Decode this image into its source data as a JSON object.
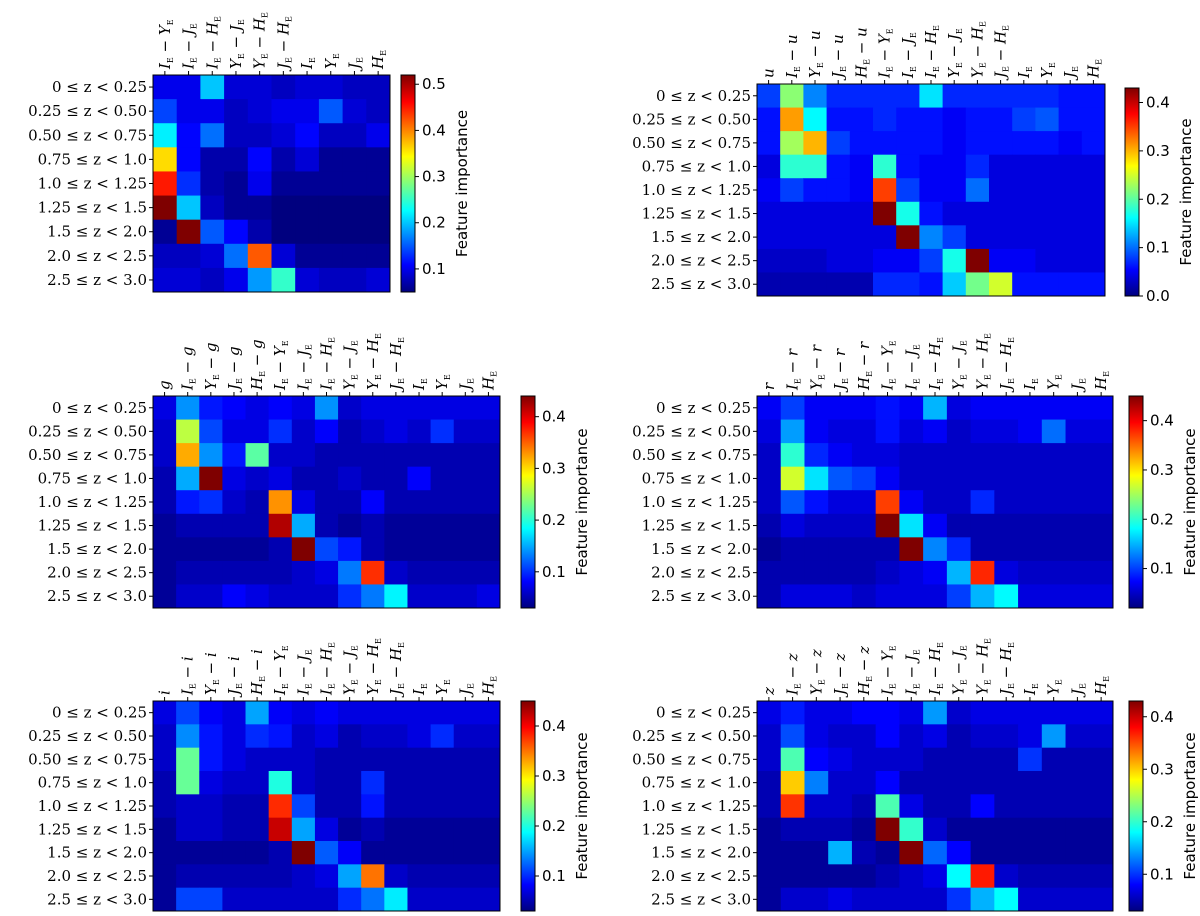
{
  "colormap": [
    "#00007f",
    "#0000ff",
    "#007fff",
    "#00ffff",
    "#7fff7f",
    "#ffff00",
    "#ff7f00",
    "#ff0000",
    "#7f0000"
  ],
  "chart_data": [
    {
      "type": "heatmap",
      "panel": "top-left",
      "colorbar_label": "Feature importance",
      "vmin": 0.05,
      "vmax": 0.52,
      "colorbar_ticks": [
        0.1,
        0.2,
        0.3,
        0.4,
        0.5
      ],
      "columns": [
        "I_E − Y_E",
        "I_E − J_E",
        "I_E − H_E",
        "Y_E − J_E",
        "Y_E − H_E",
        "J_E − H_E",
        "I_E",
        "Y_E",
        "J_E",
        "H_E"
      ],
      "rows": [
        "0 ≤ z < 0.25",
        "0.25 ≤ z < 0.50",
        "0.50 ≤ z < 0.75",
        "0.75 ≤ z < 1.0",
        "1.0 ≤ z < 1.25",
        "1.25 ≤ z < 1.5",
        "1.5 ≤ z < 2.0",
        "2.0 ≤ z < 2.5",
        "2.5 ≤ z < 3.0"
      ],
      "values": [
        [
          0.1,
          0.1,
          0.2,
          0.09,
          0.09,
          0.08,
          0.09,
          0.09,
          0.08,
          0.08
        ],
        [
          0.14,
          0.1,
          0.1,
          0.08,
          0.09,
          0.1,
          0.1,
          0.15,
          0.09,
          0.08
        ],
        [
          0.22,
          0.11,
          0.16,
          0.08,
          0.08,
          0.09,
          0.11,
          0.08,
          0.08,
          0.1
        ],
        [
          0.36,
          0.11,
          0.07,
          0.07,
          0.11,
          0.07,
          0.09,
          0.06,
          0.06,
          0.06
        ],
        [
          0.45,
          0.13,
          0.07,
          0.06,
          0.1,
          0.06,
          0.06,
          0.06,
          0.06,
          0.06
        ],
        [
          0.52,
          0.2,
          0.08,
          0.06,
          0.06,
          0.05,
          0.05,
          0.05,
          0.05,
          0.05
        ],
        [
          0.06,
          0.52,
          0.15,
          0.11,
          0.07,
          0.05,
          0.05,
          0.05,
          0.05,
          0.05
        ],
        [
          0.08,
          0.08,
          0.09,
          0.16,
          0.42,
          0.09,
          0.06,
          0.06,
          0.06,
          0.06
        ],
        [
          0.09,
          0.09,
          0.08,
          0.1,
          0.18,
          0.25,
          0.09,
          0.08,
          0.08,
          0.09
        ]
      ]
    },
    {
      "type": "heatmap",
      "panel": "top-right",
      "colorbar_label": "Feature importance",
      "vmin": 0.0,
      "vmax": 0.43,
      "colorbar_ticks": [
        0.0,
        0.1,
        0.2,
        0.3,
        0.4
      ],
      "columns": [
        "u",
        "I_E − u",
        "Y_E − u",
        "J_E − u",
        "H_E − u",
        "I_E − Y_E",
        "I_E − J_E",
        "I_E − H_E",
        "Y_E − J_E",
        "Y_E − H_E",
        "J_E − H_E",
        "I_E",
        "Y_E",
        "J_E",
        "H_E"
      ],
      "rows": [
        "0 ≤ z < 0.25",
        "0.25 ≤ z < 0.50",
        "0.50 ≤ z < 0.75",
        "0.75 ≤ z < 1.0",
        "1.0 ≤ z < 1.25",
        "1.25 ≤ z < 1.5",
        "1.5 ≤ z < 2.0",
        "2.0 ≤ z < 2.5",
        "2.5 ≤ z < 3.0"
      ],
      "values": [
        [
          0.08,
          0.22,
          0.11,
          0.07,
          0.07,
          0.07,
          0.07,
          0.15,
          0.07,
          0.07,
          0.07,
          0.07,
          0.07,
          0.06,
          0.06
        ],
        [
          0.06,
          0.31,
          0.16,
          0.06,
          0.06,
          0.07,
          0.06,
          0.06,
          0.05,
          0.06,
          0.06,
          0.08,
          0.09,
          0.06,
          0.06
        ],
        [
          0.06,
          0.23,
          0.3,
          0.08,
          0.06,
          0.06,
          0.06,
          0.06,
          0.05,
          0.06,
          0.06,
          0.06,
          0.06,
          0.05,
          0.06
        ],
        [
          0.04,
          0.18,
          0.18,
          0.06,
          0.05,
          0.18,
          0.06,
          0.05,
          0.05,
          0.07,
          0.04,
          0.04,
          0.04,
          0.04,
          0.04
        ],
        [
          0.05,
          0.08,
          0.06,
          0.06,
          0.05,
          0.35,
          0.08,
          0.05,
          0.05,
          0.1,
          0.04,
          0.04,
          0.04,
          0.04,
          0.04
        ],
        [
          0.04,
          0.04,
          0.04,
          0.04,
          0.04,
          0.43,
          0.17,
          0.06,
          0.04,
          0.04,
          0.04,
          0.04,
          0.04,
          0.04,
          0.04
        ],
        [
          0.04,
          0.04,
          0.04,
          0.04,
          0.04,
          0.04,
          0.43,
          0.11,
          0.08,
          0.04,
          0.04,
          0.04,
          0.04,
          0.04,
          0.04
        ],
        [
          0.03,
          0.03,
          0.03,
          0.04,
          0.04,
          0.05,
          0.05,
          0.08,
          0.17,
          0.43,
          0.05,
          0.05,
          0.04,
          0.04,
          0.04
        ],
        [
          0.02,
          0.02,
          0.02,
          0.02,
          0.02,
          0.07,
          0.07,
          0.06,
          0.14,
          0.21,
          0.25,
          0.06,
          0.06,
          0.06,
          0.06
        ]
      ]
    },
    {
      "type": "heatmap",
      "panel": "middle-left",
      "colorbar_label": "Feature importance",
      "vmin": 0.03,
      "vmax": 0.44,
      "colorbar_ticks": [
        0.1,
        0.2,
        0.3,
        0.4
      ],
      "columns": [
        "g",
        "I_E − g",
        "Y_E − g",
        "J_E − g",
        "H_E − g",
        "I_E − Y_E",
        "I_E − J_E",
        "I_E − H_E",
        "Y_E − J_E",
        "Y_E − H_E",
        "J_E − H_E",
        "I_E",
        "Y_E",
        "J_E",
        "H_E"
      ],
      "rows": [
        "0 ≤ z < 0.25",
        "0.25 ≤ z < 0.50",
        "0.50 ≤ z < 0.75",
        "0.75 ≤ z < 1.0",
        "1.0 ≤ z < 1.25",
        "1.25 ≤ z < 1.5",
        "1.5 ≤ z < 2.0",
        "2.0 ≤ z < 2.5",
        "2.5 ≤ z < 3.0"
      ],
      "values": [
        [
          0.07,
          0.14,
          0.09,
          0.08,
          0.07,
          0.08,
          0.07,
          0.14,
          0.06,
          0.07,
          0.07,
          0.07,
          0.07,
          0.07,
          0.07
        ],
        [
          0.06,
          0.26,
          0.11,
          0.07,
          0.07,
          0.1,
          0.06,
          0.08,
          0.05,
          0.06,
          0.07,
          0.06,
          0.1,
          0.06,
          0.06
        ],
        [
          0.06,
          0.32,
          0.14,
          0.09,
          0.22,
          0.06,
          0.06,
          0.05,
          0.05,
          0.05,
          0.05,
          0.05,
          0.05,
          0.05,
          0.05
        ],
        [
          0.05,
          0.15,
          0.44,
          0.07,
          0.06,
          0.07,
          0.05,
          0.05,
          0.06,
          0.05,
          0.05,
          0.08,
          0.05,
          0.05,
          0.05
        ],
        [
          0.05,
          0.09,
          0.1,
          0.06,
          0.05,
          0.33,
          0.07,
          0.05,
          0.05,
          0.08,
          0.05,
          0.05,
          0.05,
          0.05,
          0.05
        ],
        [
          0.04,
          0.05,
          0.05,
          0.05,
          0.05,
          0.42,
          0.15,
          0.05,
          0.04,
          0.05,
          0.04,
          0.04,
          0.04,
          0.04,
          0.04
        ],
        [
          0.04,
          0.04,
          0.04,
          0.04,
          0.04,
          0.05,
          0.44,
          0.11,
          0.09,
          0.05,
          0.04,
          0.04,
          0.04,
          0.04,
          0.04
        ],
        [
          0.04,
          0.05,
          0.05,
          0.05,
          0.05,
          0.05,
          0.06,
          0.07,
          0.13,
          0.37,
          0.06,
          0.05,
          0.05,
          0.05,
          0.05
        ],
        [
          0.04,
          0.06,
          0.06,
          0.08,
          0.07,
          0.06,
          0.06,
          0.06,
          0.1,
          0.13,
          0.18,
          0.06,
          0.06,
          0.06,
          0.07
        ]
      ]
    },
    {
      "type": "heatmap",
      "panel": "middle-right",
      "colorbar_label": "Feature importance",
      "vmin": 0.02,
      "vmax": 0.45,
      "colorbar_ticks": [
        0.1,
        0.2,
        0.3,
        0.4
      ],
      "columns": [
        "r",
        "I_E − r",
        "Y_E − r",
        "J_E − r",
        "H_E − r",
        "I_E − Y_E",
        "I_E − J_E",
        "I_E − H_E",
        "Y_E − J_E",
        "Y_E − H_E",
        "J_E − H_E",
        "I_E",
        "Y_E",
        "J_E",
        "H_E"
      ],
      "rows": [
        "0 ≤ z < 0.25",
        "0.25 ≤ z < 0.50",
        "0.50 ≤ z < 0.75",
        "0.75 ≤ z < 1.0",
        "1.0 ≤ z < 1.25",
        "1.25 ≤ z < 1.5",
        "1.5 ≤ z < 2.0",
        "2.0 ≤ z < 2.5",
        "2.5 ≤ z < 3.0"
      ],
      "values": [
        [
          0.07,
          0.1,
          0.07,
          0.07,
          0.07,
          0.08,
          0.07,
          0.15,
          0.06,
          0.07,
          0.07,
          0.07,
          0.07,
          0.07,
          0.07
        ],
        [
          0.06,
          0.14,
          0.07,
          0.06,
          0.06,
          0.08,
          0.06,
          0.07,
          0.05,
          0.06,
          0.06,
          0.07,
          0.12,
          0.06,
          0.06
        ],
        [
          0.05,
          0.2,
          0.09,
          0.07,
          0.06,
          0.06,
          0.05,
          0.05,
          0.05,
          0.05,
          0.05,
          0.05,
          0.05,
          0.05,
          0.05
        ],
        [
          0.05,
          0.27,
          0.17,
          0.11,
          0.1,
          0.07,
          0.05,
          0.05,
          0.05,
          0.05,
          0.05,
          0.05,
          0.05,
          0.05,
          0.05
        ],
        [
          0.05,
          0.11,
          0.08,
          0.06,
          0.06,
          0.37,
          0.07,
          0.05,
          0.05,
          0.09,
          0.05,
          0.05,
          0.05,
          0.05,
          0.05
        ],
        [
          0.04,
          0.06,
          0.05,
          0.05,
          0.05,
          0.45,
          0.17,
          0.07,
          0.04,
          0.04,
          0.04,
          0.04,
          0.04,
          0.04,
          0.04
        ],
        [
          0.03,
          0.04,
          0.04,
          0.04,
          0.04,
          0.04,
          0.45,
          0.13,
          0.09,
          0.04,
          0.04,
          0.04,
          0.04,
          0.04,
          0.04
        ],
        [
          0.04,
          0.04,
          0.04,
          0.04,
          0.04,
          0.05,
          0.06,
          0.07,
          0.15,
          0.38,
          0.06,
          0.05,
          0.05,
          0.05,
          0.05
        ],
        [
          0.04,
          0.06,
          0.06,
          0.06,
          0.05,
          0.06,
          0.06,
          0.06,
          0.1,
          0.15,
          0.18,
          0.06,
          0.06,
          0.06,
          0.06
        ]
      ]
    },
    {
      "type": "heatmap",
      "panel": "bottom-left",
      "colorbar_label": "Feature importance",
      "vmin": 0.03,
      "vmax": 0.45,
      "colorbar_ticks": [
        0.1,
        0.2,
        0.3,
        0.4
      ],
      "columns": [
        "i",
        "I_E − i",
        "Y_E − i",
        "J_E − i",
        "H_E − i",
        "I_E − Y_E",
        "I_E − J_E",
        "I_E − H_E",
        "Y_E − J_E",
        "Y_E − H_E",
        "J_E − H_E",
        "I_E",
        "Y_E",
        "J_E",
        "H_E"
      ],
      "rows": [
        "0 ≤ z < 0.25",
        "0.25 ≤ z < 0.50",
        "0.50 ≤ z < 0.75",
        "0.75 ≤ z < 1.0",
        "1.0 ≤ z < 1.25",
        "1.25 ≤ z < 1.5",
        "1.5 ≤ z < 2.0",
        "2.0 ≤ z < 2.5",
        "2.5 ≤ z < 3.0"
      ],
      "values": [
        [
          0.07,
          0.11,
          0.08,
          0.07,
          0.15,
          0.08,
          0.07,
          0.08,
          0.07,
          0.07,
          0.07,
          0.07,
          0.07,
          0.07,
          0.07
        ],
        [
          0.06,
          0.14,
          0.09,
          0.07,
          0.1,
          0.09,
          0.06,
          0.07,
          0.05,
          0.06,
          0.06,
          0.07,
          0.1,
          0.06,
          0.06
        ],
        [
          0.06,
          0.23,
          0.09,
          0.07,
          0.06,
          0.06,
          0.06,
          0.05,
          0.05,
          0.05,
          0.05,
          0.05,
          0.05,
          0.05,
          0.05
        ],
        [
          0.05,
          0.23,
          0.07,
          0.06,
          0.06,
          0.2,
          0.06,
          0.05,
          0.05,
          0.1,
          0.05,
          0.05,
          0.05,
          0.05,
          0.05
        ],
        [
          0.05,
          0.06,
          0.06,
          0.05,
          0.05,
          0.38,
          0.11,
          0.05,
          0.05,
          0.09,
          0.05,
          0.05,
          0.05,
          0.05,
          0.05
        ],
        [
          0.04,
          0.06,
          0.06,
          0.05,
          0.05,
          0.42,
          0.15,
          0.07,
          0.04,
          0.05,
          0.04,
          0.04,
          0.04,
          0.04,
          0.04
        ],
        [
          0.04,
          0.04,
          0.04,
          0.04,
          0.04,
          0.05,
          0.45,
          0.12,
          0.08,
          0.04,
          0.04,
          0.04,
          0.04,
          0.04,
          0.04
        ],
        [
          0.04,
          0.05,
          0.05,
          0.05,
          0.05,
          0.05,
          0.06,
          0.07,
          0.15,
          0.35,
          0.06,
          0.05,
          0.05,
          0.05,
          0.05
        ],
        [
          0.04,
          0.11,
          0.11,
          0.06,
          0.06,
          0.06,
          0.06,
          0.06,
          0.1,
          0.13,
          0.18,
          0.06,
          0.06,
          0.06,
          0.06
        ]
      ]
    },
    {
      "type": "heatmap",
      "panel": "bottom-right",
      "colorbar_label": "Feature importance",
      "vmin": 0.03,
      "vmax": 0.43,
      "colorbar_ticks": [
        0.1,
        0.2,
        0.3,
        0.4
      ],
      "columns": [
        "z",
        "I_E − z",
        "Y_E − z",
        "J_E − z",
        "H_E − z",
        "I_E − Y_E",
        "I_E − J_E",
        "I_E − H_E",
        "Y_E − J_E",
        "Y_E − H_E",
        "J_E − H_E",
        "I_E",
        "Y_E",
        "J_E",
        "H_E"
      ],
      "rows": [
        "0 ≤ z < 0.25",
        "0.25 ≤ z < 0.50",
        "0.50 ≤ z < 0.75",
        "0.75 ≤ z < 1.0",
        "1.0 ≤ z < 1.25",
        "1.25 ≤ z < 1.5",
        "1.5 ≤ z < 2.0",
        "2.0 ≤ z < 2.5",
        "2.5 ≤ z < 3.0"
      ],
      "values": [
        [
          0.07,
          0.09,
          0.07,
          0.07,
          0.08,
          0.08,
          0.07,
          0.14,
          0.06,
          0.07,
          0.07,
          0.07,
          0.07,
          0.07,
          0.07
        ],
        [
          0.06,
          0.11,
          0.07,
          0.06,
          0.06,
          0.08,
          0.06,
          0.07,
          0.05,
          0.06,
          0.06,
          0.07,
          0.14,
          0.06,
          0.06
        ],
        [
          0.06,
          0.21,
          0.08,
          0.07,
          0.06,
          0.06,
          0.06,
          0.05,
          0.05,
          0.05,
          0.05,
          0.1,
          0.05,
          0.05,
          0.05
        ],
        [
          0.05,
          0.3,
          0.13,
          0.06,
          0.06,
          0.08,
          0.05,
          0.05,
          0.05,
          0.05,
          0.05,
          0.05,
          0.05,
          0.05,
          0.05
        ],
        [
          0.05,
          0.36,
          0.06,
          0.06,
          0.05,
          0.21,
          0.07,
          0.05,
          0.05,
          0.08,
          0.05,
          0.05,
          0.05,
          0.05,
          0.05
        ],
        [
          0.04,
          0.05,
          0.05,
          0.05,
          0.04,
          0.43,
          0.2,
          0.06,
          0.04,
          0.04,
          0.04,
          0.04,
          0.04,
          0.04,
          0.04
        ],
        [
          0.04,
          0.04,
          0.04,
          0.15,
          0.05,
          0.04,
          0.43,
          0.12,
          0.08,
          0.04,
          0.04,
          0.04,
          0.04,
          0.04,
          0.04
        ],
        [
          0.04,
          0.04,
          0.04,
          0.04,
          0.04,
          0.05,
          0.06,
          0.07,
          0.18,
          0.37,
          0.06,
          0.05,
          0.05,
          0.05,
          0.05
        ],
        [
          0.04,
          0.06,
          0.06,
          0.07,
          0.06,
          0.06,
          0.06,
          0.06,
          0.1,
          0.15,
          0.18,
          0.06,
          0.06,
          0.06,
          0.06
        ]
      ]
    }
  ]
}
